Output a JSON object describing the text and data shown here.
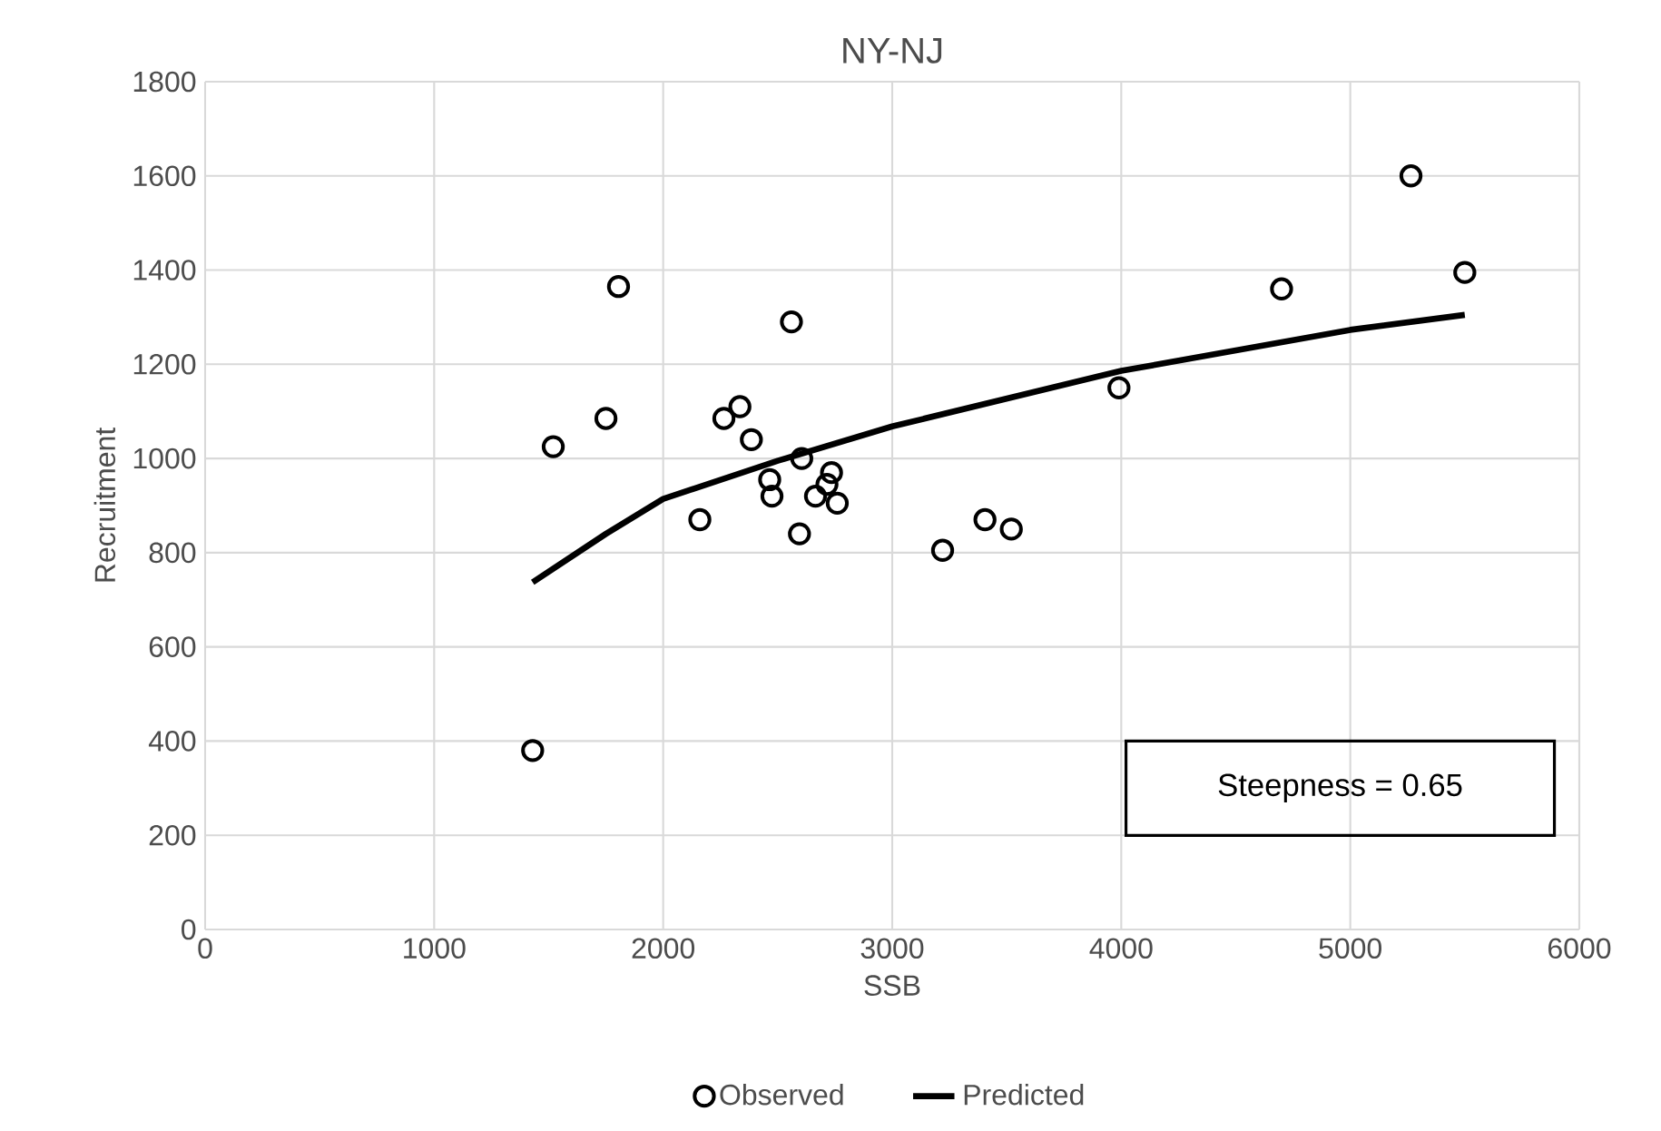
{
  "chart_data": {
    "type": "scatter",
    "title": "NY-NJ",
    "xlabel": "SSB",
    "ylabel": "Recruitment",
    "xlim": [
      0,
      6000
    ],
    "xticks": [
      0,
      1000,
      2000,
      3000,
      4000,
      5000,
      6000
    ],
    "ylim": [
      0,
      1800
    ],
    "yticks": [
      0,
      200,
      400,
      600,
      800,
      1000,
      1200,
      1400,
      1600,
      1800
    ],
    "grid": true,
    "legend": "bottom",
    "annotations": [
      "Steepness = 0.65"
    ],
    "series": [
      {
        "name": "Observed",
        "marker": "circle",
        "color": "#000000",
        "x": [
          1430,
          1520,
          1750,
          1805,
          2160,
          2265,
          2335,
          2385,
          2560,
          2465,
          2475,
          2605,
          2595,
          2665,
          2715,
          2735,
          2760,
          3220,
          3405,
          3520,
          3990,
          4700,
          5265,
          5500
        ],
        "values": [
          380,
          1025,
          1085,
          1365,
          870,
          1085,
          1110,
          1040,
          1290,
          955,
          920,
          1000,
          840,
          920,
          945,
          970,
          905,
          805,
          870,
          850,
          1150,
          1360,
          1600,
          1395
        ]
      },
      {
        "name": "Predicted",
        "type": "line",
        "marker": "none",
        "line_style": "solid",
        "color": "#000000",
        "x": [
          1430,
          1750,
          2000,
          2500,
          3000,
          4000,
          5000,
          5500
        ],
        "values": [
          737,
          840,
          914,
          995,
          1068,
          1186,
          1273,
          1305
        ]
      }
    ]
  }
}
